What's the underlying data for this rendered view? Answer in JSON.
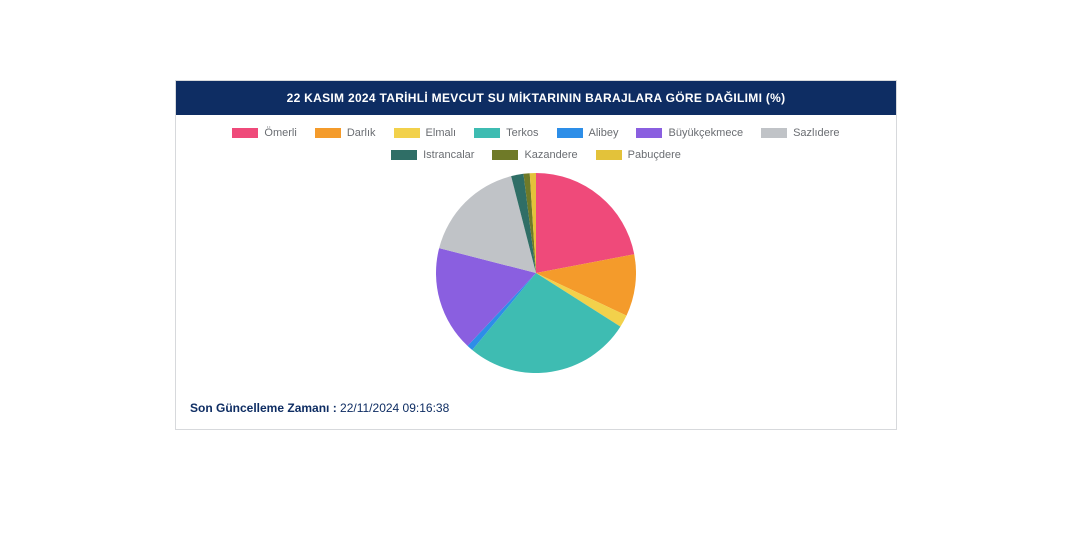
{
  "header": {
    "title": "22 KASIM 2024 TARİHLİ MEVCUT SU MİKTARININ BARAJLARA GÖRE DAĞILIMI (%)",
    "bg_color": "#0e2d63",
    "text_color": "#ffffff",
    "font_size": 12
  },
  "card": {
    "border_color": "#d7d9dc",
    "bg_color": "#ffffff"
  },
  "legend": {
    "font_size": 11,
    "text_color": "#6a6d72",
    "swatch_width": 26,
    "swatch_height": 10
  },
  "chart": {
    "type": "pie",
    "diameter": 200,
    "start_angle_deg": -90,
    "items": [
      {
        "label": "Ömerli",
        "value": 22,
        "color": "#ef4a7a"
      },
      {
        "label": "Darlık",
        "value": 10,
        "color": "#f49b2b"
      },
      {
        "label": "Elmalı",
        "value": 2,
        "color": "#f2d14b"
      },
      {
        "label": "Terkos",
        "value": 27,
        "color": "#3ebcb2"
      },
      {
        "label": "Alibey",
        "value": 1,
        "color": "#2d8ee8"
      },
      {
        "label": "Büyükçekmece",
        "value": 17,
        "color": "#8a5fe0"
      },
      {
        "label": "Sazlıdere",
        "value": 17,
        "color": "#c0c3c7"
      },
      {
        "label": "Istrancalar",
        "value": 2,
        "color": "#2f6e66"
      },
      {
        "label": "Kazandere",
        "value": 1,
        "color": "#6f7a28"
      },
      {
        "label": "Pabuçdere",
        "value": 1,
        "color": "#e3c23a"
      }
    ],
    "background_color": "#ffffff"
  },
  "update": {
    "label": "Son Güncelleme Zamanı :",
    "value": "22/11/2024 09:16:38",
    "font_size": 12,
    "text_color": "#0e2d63"
  }
}
